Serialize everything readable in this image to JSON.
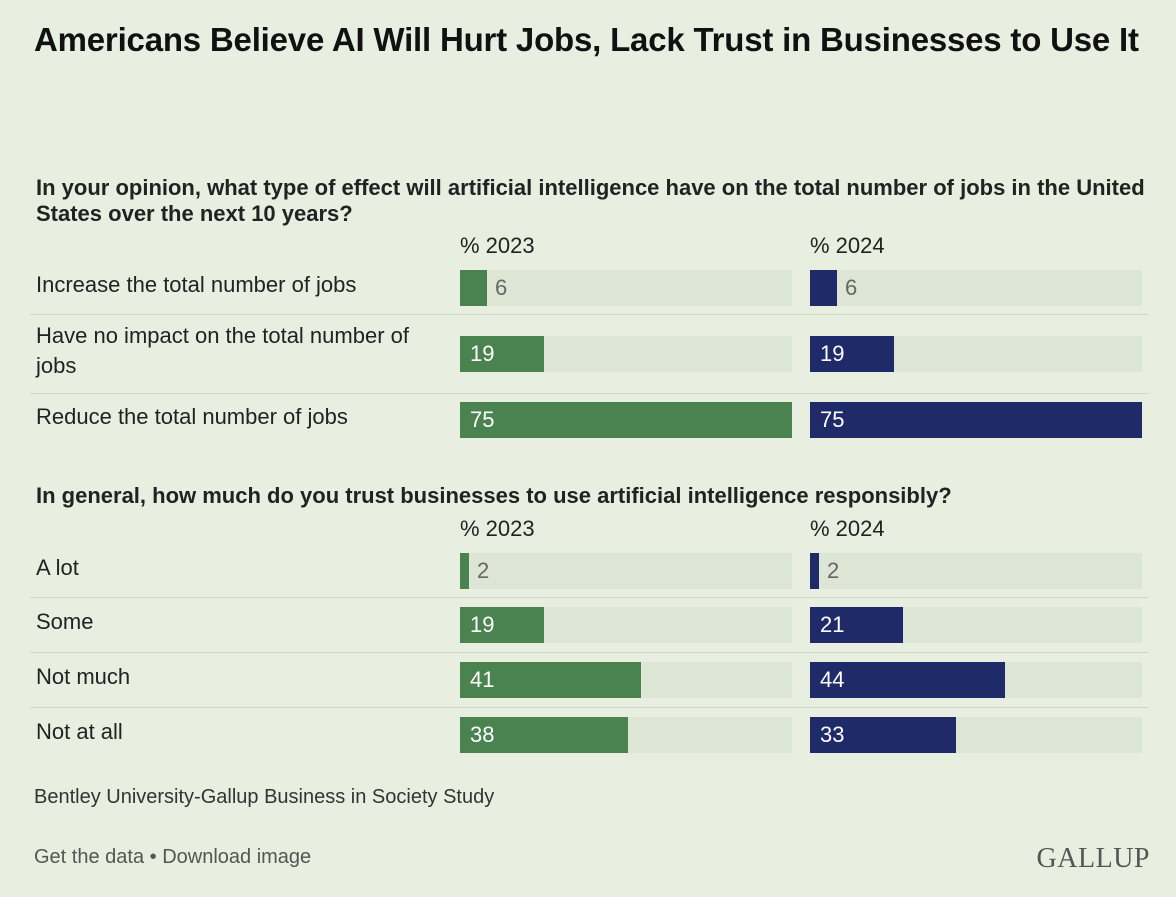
{
  "title": "Americans Believe AI Will Hurt Jobs, Lack Trust in Businesses to Use It",
  "source": "Bentley University-Gallup Business in Society Study",
  "footer": {
    "get_data": "Get the data",
    "separator": " • ",
    "download": "Download image"
  },
  "logo": "GALLUP",
  "colors": {
    "y2023": "#4a8350",
    "y2024": "#1f2a68",
    "track": "#dde6d5",
    "background": "#e8efe1"
  },
  "chart_data": [
    {
      "type": "bar",
      "title": "In your opinion, what type of effect will artificial intelligence have on the total number of jobs in the United States over the next 10 years?",
      "categories": [
        "Increase the total number of jobs",
        "Have no impact on the total number of jobs",
        "Reduce the total number of jobs"
      ],
      "series": [
        {
          "name": "% 2023",
          "values": [
            6,
            19,
            75
          ]
        },
        {
          "name": "% 2024",
          "values": [
            6,
            19,
            75
          ]
        }
      ],
      "xlim": [
        0,
        75
      ],
      "grid": false
    },
    {
      "type": "bar",
      "title": "In general, how much do you trust businesses to use artificial intelligence responsibly?",
      "categories": [
        "A lot",
        "Some",
        "Not much",
        "Not at all"
      ],
      "series": [
        {
          "name": "% 2023",
          "values": [
            2,
            19,
            41,
            38
          ]
        },
        {
          "name": "% 2024",
          "values": [
            2,
            21,
            44,
            33
          ]
        }
      ],
      "xlim": [
        0,
        75
      ],
      "grid": false
    }
  ]
}
